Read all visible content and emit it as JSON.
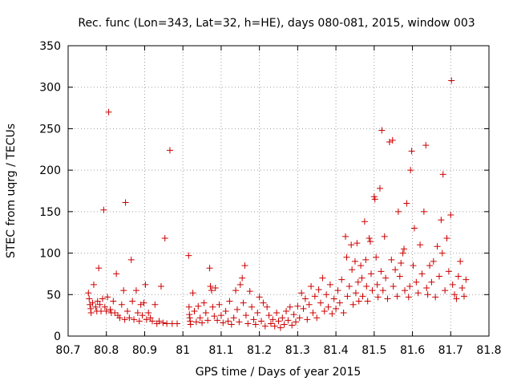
{
  "chart_data": {
    "type": "scatter",
    "title": "Rec. func (Lon=343, Lat=32, h=HE), days 080-081, 2015, window 003",
    "xlabel": "GPS time / Days of year 2015",
    "ylabel": "STEC from uqrg / TECUs",
    "xlim": [
      80.7,
      81.8
    ],
    "ylim": [
      0,
      350
    ],
    "xticks": [
      "80.7",
      "80.8",
      "80.9",
      "81",
      "81.1",
      "81.2",
      "81.3",
      "81.4",
      "81.5",
      "81.6",
      "81.7",
      "81.8"
    ],
    "yticks": [
      "0",
      "50",
      "100",
      "150",
      "200",
      "250",
      "300",
      "350"
    ],
    "marker": "plus",
    "color": "#cc0000",
    "grid": true,
    "series": [
      {
        "name": "",
        "points": [
          [
            80.753,
            52
          ],
          [
            80.755,
            45
          ],
          [
            80.757,
            38
          ],
          [
            80.759,
            33
          ],
          [
            80.76,
            28
          ],
          [
            80.764,
            40
          ],
          [
            80.767,
            62
          ],
          [
            80.772,
            35
          ],
          [
            80.775,
            30
          ],
          [
            80.777,
            42
          ],
          [
            80.78,
            82
          ],
          [
            80.783,
            38
          ],
          [
            80.786,
            30
          ],
          [
            80.79,
            45
          ],
          [
            80.793,
            152
          ],
          [
            80.796,
            35
          ],
          [
            80.8,
            30
          ],
          [
            80.803,
            47
          ],
          [
            80.806,
            270
          ],
          [
            80.81,
            32
          ],
          [
            80.813,
            28
          ],
          [
            80.818,
            42
          ],
          [
            80.822,
            28
          ],
          [
            80.826,
            75
          ],
          [
            80.83,
            25
          ],
          [
            80.835,
            22
          ],
          [
            80.84,
            38
          ],
          [
            80.845,
            55
          ],
          [
            80.848,
            20
          ],
          [
            80.85,
            161
          ],
          [
            80.855,
            30
          ],
          [
            80.86,
            22
          ],
          [
            80.865,
            92
          ],
          [
            80.868,
            42
          ],
          [
            80.872,
            20
          ],
          [
            80.878,
            55
          ],
          [
            80.882,
            28
          ],
          [
            80.886,
            18
          ],
          [
            80.89,
            38
          ],
          [
            80.894,
            25
          ],
          [
            80.898,
            40
          ],
          [
            80.902,
            62
          ],
          [
            80.905,
            20
          ],
          [
            80.91,
            28
          ],
          [
            80.915,
            22
          ],
          [
            80.92,
            18
          ],
          [
            80.927,
            38
          ],
          [
            80.932,
            15
          ],
          [
            80.938,
            18
          ],
          [
            80.943,
            60
          ],
          [
            80.948,
            16
          ],
          [
            80.953,
            118
          ],
          [
            80.958,
            15
          ],
          [
            80.966,
            224
          ],
          [
            80.972,
            15
          ],
          [
            80.985,
            15
          ],
          [
            81.015,
            97
          ],
          [
            81.016,
            35
          ],
          [
            81.017,
            26
          ],
          [
            81.018,
            22
          ],
          [
            81.019,
            18
          ],
          [
            81.02,
            14
          ],
          [
            81.026,
            52
          ],
          [
            81.03,
            30
          ],
          [
            81.035,
            17
          ],
          [
            81.04,
            36
          ],
          [
            81.045,
            22
          ],
          [
            81.05,
            16
          ],
          [
            81.055,
            40
          ],
          [
            81.06,
            28
          ],
          [
            81.065,
            19
          ],
          [
            81.07,
            82
          ],
          [
            81.072,
            60
          ],
          [
            81.075,
            55
          ],
          [
            81.078,
            35
          ],
          [
            81.082,
            24
          ],
          [
            81.085,
            58
          ],
          [
            81.09,
            19
          ],
          [
            81.095,
            38
          ],
          [
            81.1,
            25
          ],
          [
            81.105,
            16
          ],
          [
            81.112,
            30
          ],
          [
            81.118,
            18
          ],
          [
            81.122,
            42
          ],
          [
            81.127,
            14
          ],
          [
            81.133,
            22
          ],
          [
            81.138,
            55
          ],
          [
            81.142,
            32
          ],
          [
            81.147,
            17
          ],
          [
            81.15,
            62
          ],
          [
            81.155,
            70
          ],
          [
            81.158,
            40
          ],
          [
            81.162,
            85
          ],
          [
            81.165,
            25
          ],
          [
            81.17,
            15
          ],
          [
            81.175,
            54
          ],
          [
            81.18,
            35
          ],
          [
            81.185,
            20
          ],
          [
            81.19,
            14
          ],
          [
            81.195,
            28
          ],
          [
            81.2,
            47
          ],
          [
            81.205,
            18
          ],
          [
            81.21,
            40
          ],
          [
            81.215,
            12
          ],
          [
            81.22,
            35
          ],
          [
            81.225,
            25
          ],
          [
            81.23,
            15
          ],
          [
            81.235,
            20
          ],
          [
            81.24,
            12
          ],
          [
            81.245,
            28
          ],
          [
            81.25,
            18
          ],
          [
            81.255,
            10
          ],
          [
            81.26,
            22
          ],
          [
            81.265,
            14
          ],
          [
            81.27,
            30
          ],
          [
            81.275,
            19
          ],
          [
            81.28,
            35
          ],
          [
            81.285,
            13
          ],
          [
            81.29,
            26
          ],
          [
            81.295,
            17
          ],
          [
            81.3,
            36
          ],
          [
            81.305,
            22
          ],
          [
            81.31,
            52
          ],
          [
            81.315,
            33
          ],
          [
            81.32,
            45
          ],
          [
            81.325,
            20
          ],
          [
            81.33,
            38
          ],
          [
            81.335,
            60
          ],
          [
            81.34,
            28
          ],
          [
            81.345,
            48
          ],
          [
            81.35,
            22
          ],
          [
            81.355,
            56
          ],
          [
            81.36,
            40
          ],
          [
            81.365,
            70
          ],
          [
            81.37,
            30
          ],
          [
            81.375,
            50
          ],
          [
            81.38,
            35
          ],
          [
            81.385,
            62
          ],
          [
            81.39,
            27
          ],
          [
            81.395,
            45
          ],
          [
            81.4,
            33
          ],
          [
            81.405,
            55
          ],
          [
            81.41,
            40
          ],
          [
            81.415,
            68
          ],
          [
            81.42,
            28
          ],
          [
            81.425,
            120
          ],
          [
            81.428,
            95
          ],
          [
            81.43,
            48
          ],
          [
            81.435,
            60
          ],
          [
            81.44,
            110
          ],
          [
            81.442,
            80
          ],
          [
            81.445,
            38
          ],
          [
            81.45,
            90
          ],
          [
            81.452,
            52
          ],
          [
            81.455,
            112
          ],
          [
            81.458,
            65
          ],
          [
            81.46,
            42
          ],
          [
            81.465,
            85
          ],
          [
            81.468,
            70
          ],
          [
            81.47,
            48
          ],
          [
            81.475,
            138
          ],
          [
            81.478,
            92
          ],
          [
            81.48,
            60
          ],
          [
            81.483,
            42
          ],
          [
            81.487,
            118
          ],
          [
            81.49,
            114
          ],
          [
            81.492,
            75
          ],
          [
            81.495,
            55
          ],
          [
            81.5,
            168
          ],
          [
            81.502,
            165
          ],
          [
            81.505,
            95
          ],
          [
            81.508,
            62
          ],
          [
            81.51,
            47
          ],
          [
            81.515,
            178
          ],
          [
            81.518,
            78
          ],
          [
            81.52,
            248
          ],
          [
            81.523,
            55
          ],
          [
            81.527,
            120
          ],
          [
            81.53,
            70
          ],
          [
            81.535,
            45
          ],
          [
            81.54,
            234
          ],
          [
            81.545,
            92
          ],
          [
            81.548,
            236
          ],
          [
            81.55,
            60
          ],
          [
            81.555,
            80
          ],
          [
            81.56,
            48
          ],
          [
            81.563,
            150
          ],
          [
            81.567,
            72
          ],
          [
            81.57,
            88
          ],
          [
            81.575,
            100
          ],
          [
            81.578,
            105
          ],
          [
            81.58,
            55
          ],
          [
            81.585,
            160
          ],
          [
            81.59,
            47
          ],
          [
            81.593,
            60
          ],
          [
            81.595,
            200
          ],
          [
            81.598,
            223
          ],
          [
            81.602,
            85
          ],
          [
            81.605,
            130
          ],
          [
            81.61,
            65
          ],
          [
            81.615,
            52
          ],
          [
            81.62,
            110
          ],
          [
            81.625,
            75
          ],
          [
            81.63,
            150
          ],
          [
            81.635,
            230
          ],
          [
            81.637,
            58
          ],
          [
            81.64,
            50
          ],
          [
            81.645,
            85
          ],
          [
            81.65,
            65
          ],
          [
            81.655,
            90
          ],
          [
            81.66,
            47
          ],
          [
            81.665,
            108
          ],
          [
            81.67,
            72
          ],
          [
            81.675,
            140
          ],
          [
            81.678,
            100
          ],
          [
            81.68,
            195
          ],
          [
            81.685,
            55
          ],
          [
            81.69,
            118
          ],
          [
            81.695,
            78
          ],
          [
            81.7,
            146
          ],
          [
            81.702,
            308
          ],
          [
            81.705,
            62
          ],
          [
            81.71,
            50
          ],
          [
            81.715,
            45
          ],
          [
            81.72,
            72
          ],
          [
            81.725,
            90
          ],
          [
            81.73,
            58
          ],
          [
            81.735,
            48
          ],
          [
            81.74,
            68
          ]
        ]
      }
    ]
  }
}
